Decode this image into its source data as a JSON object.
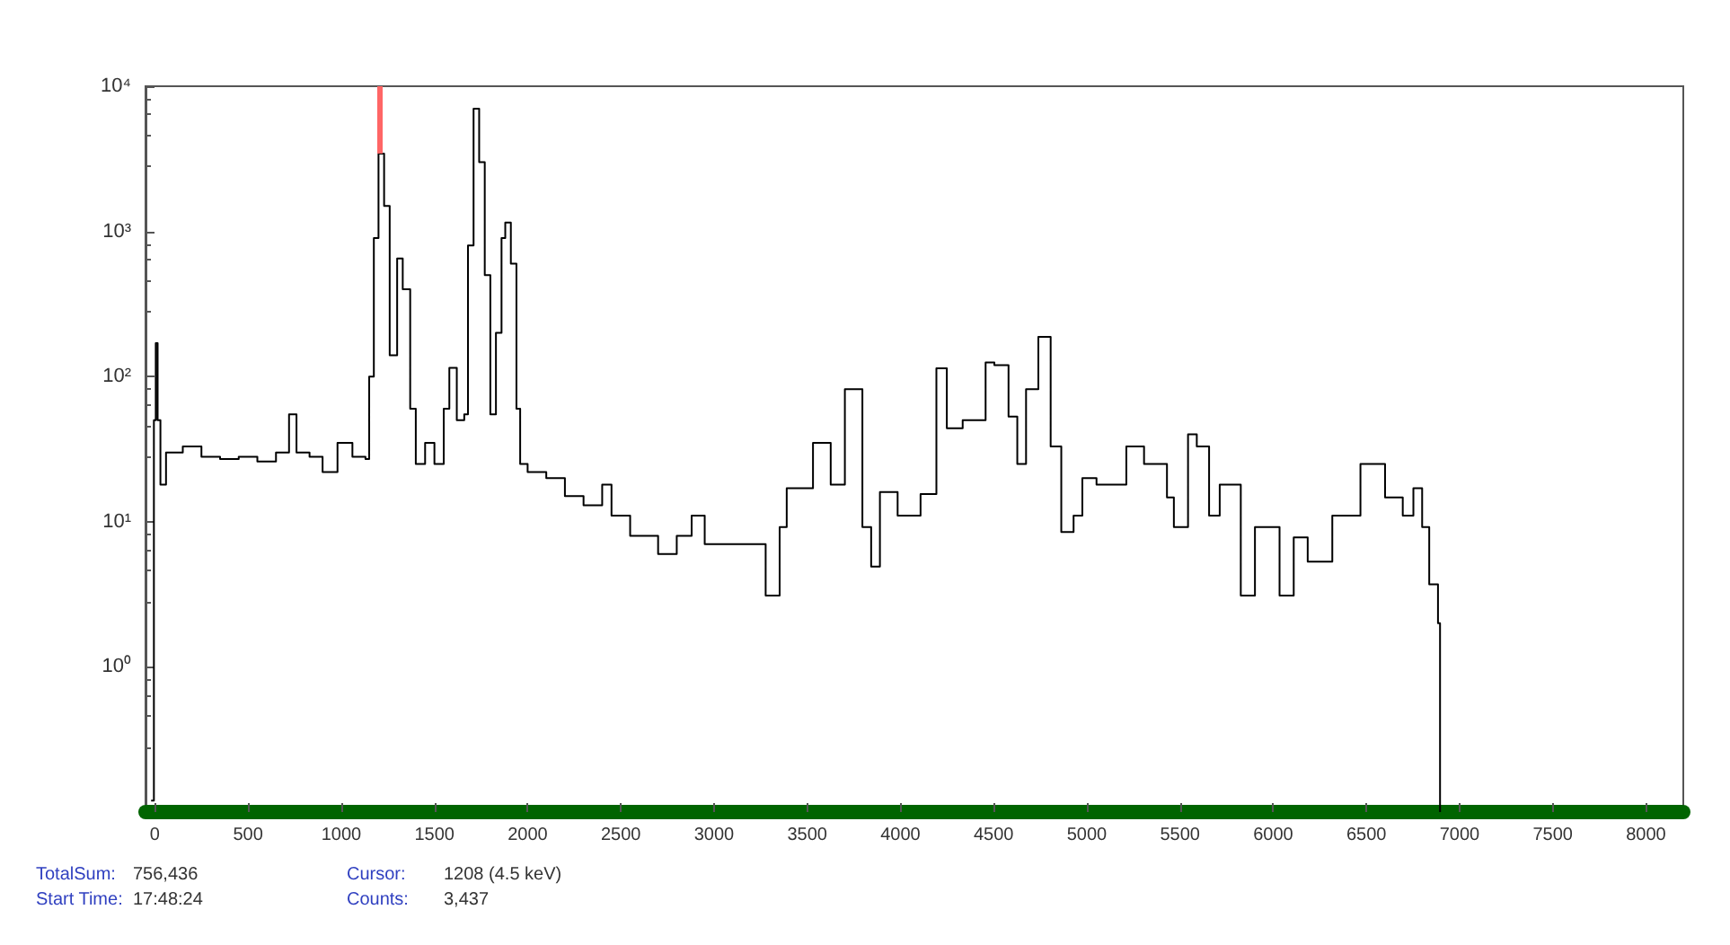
{
  "chart_data": {
    "type": "step",
    "x": [
      -20,
      -5,
      5,
      15,
      30,
      60,
      150,
      250,
      350,
      450,
      550,
      650,
      720,
      760,
      830,
      900,
      980,
      1060,
      1130,
      1150,
      1175,
      1200,
      1230,
      1260,
      1270,
      1300,
      1330,
      1370,
      1400,
      1450,
      1500,
      1550,
      1580,
      1620,
      1660,
      1680,
      1710,
      1740,
      1770,
      1800,
      1830,
      1860,
      1880,
      1910,
      1940,
      1960,
      2000,
      2100,
      2200,
      2300,
      2400,
      2450,
      2550,
      2700,
      2800,
      2880,
      2950,
      3040,
      3277,
      3352,
      3390,
      3531,
      3626,
      3702,
      3796,
      3843,
      3890,
      3985,
      4108,
      4193,
      4249,
      4334,
      4457,
      4504,
      4580,
      4627,
      4674,
      4740,
      4806,
      4863,
      4929,
      4976,
      5052,
      5212,
      5307,
      5430,
      5467,
      5543,
      5590,
      5656,
      5713,
      5826,
      5902,
      6034,
      6110,
      6185,
      6317,
      6468,
      6600,
      6695,
      6752,
      6799,
      6837,
      6884,
      6895
    ],
    "series": [
      {
        "color": "#000000",
        "values": [
          0.12,
          50,
          170,
          50,
          18,
          30,
          33,
          28,
          27,
          28,
          26,
          30,
          55,
          30,
          28,
          22,
          35,
          28,
          27,
          100,
          900,
          3437,
          1500,
          140,
          140,
          650,
          400,
          60,
          25,
          35,
          25,
          60,
          115,
          50,
          55,
          800,
          7000,
          3000,
          500,
          55,
          200,
          900,
          1150,
          600,
          60,
          25,
          22,
          20,
          15,
          13,
          18,
          11,
          8,
          6,
          8,
          11,
          7,
          7,
          3.1,
          9.2,
          17,
          35,
          18,
          82,
          9.2,
          4.9,
          16,
          11,
          15.5,
          114,
          44,
          50,
          125,
          120,
          53,
          25,
          82,
          188,
          33,
          8.5,
          11,
          20,
          18,
          33,
          25,
          14.7,
          9.2,
          40,
          33,
          11,
          18,
          3.1,
          9.2,
          3.1,
          7.8,
          5.3,
          11,
          25,
          14.7,
          11,
          17,
          9.2,
          3.7,
          2,
          0.1
        ]
      }
    ],
    "xlim": [
      -50,
      8200
    ],
    "xticks": [
      0,
      500,
      1000,
      1500,
      2000,
      2500,
      3000,
      3500,
      4000,
      4500,
      5000,
      5500,
      6000,
      6500,
      7000,
      7500,
      8000
    ],
    "ylim": [
      0.1,
      10000
    ],
    "yticks": [
      {
        "value": 1,
        "label": "10⁰"
      },
      {
        "value": 10,
        "label": "10¹"
      },
      {
        "value": 100,
        "label": "10²"
      },
      {
        "value": 1000,
        "label": "10³"
      },
      {
        "value": 10000,
        "label": "10⁴"
      }
    ],
    "log": "y",
    "ref_lines": [
      {
        "axis": "x",
        "value": 1208,
        "color": "#ff6666"
      }
    ],
    "annotations": [
      "TotalSum:",
      "756,436",
      "Start Time:",
      "17:48:24",
      "Cursor:",
      "1208 (4.5 keV)",
      "Counts:",
      "3,437"
    ]
  }
}
